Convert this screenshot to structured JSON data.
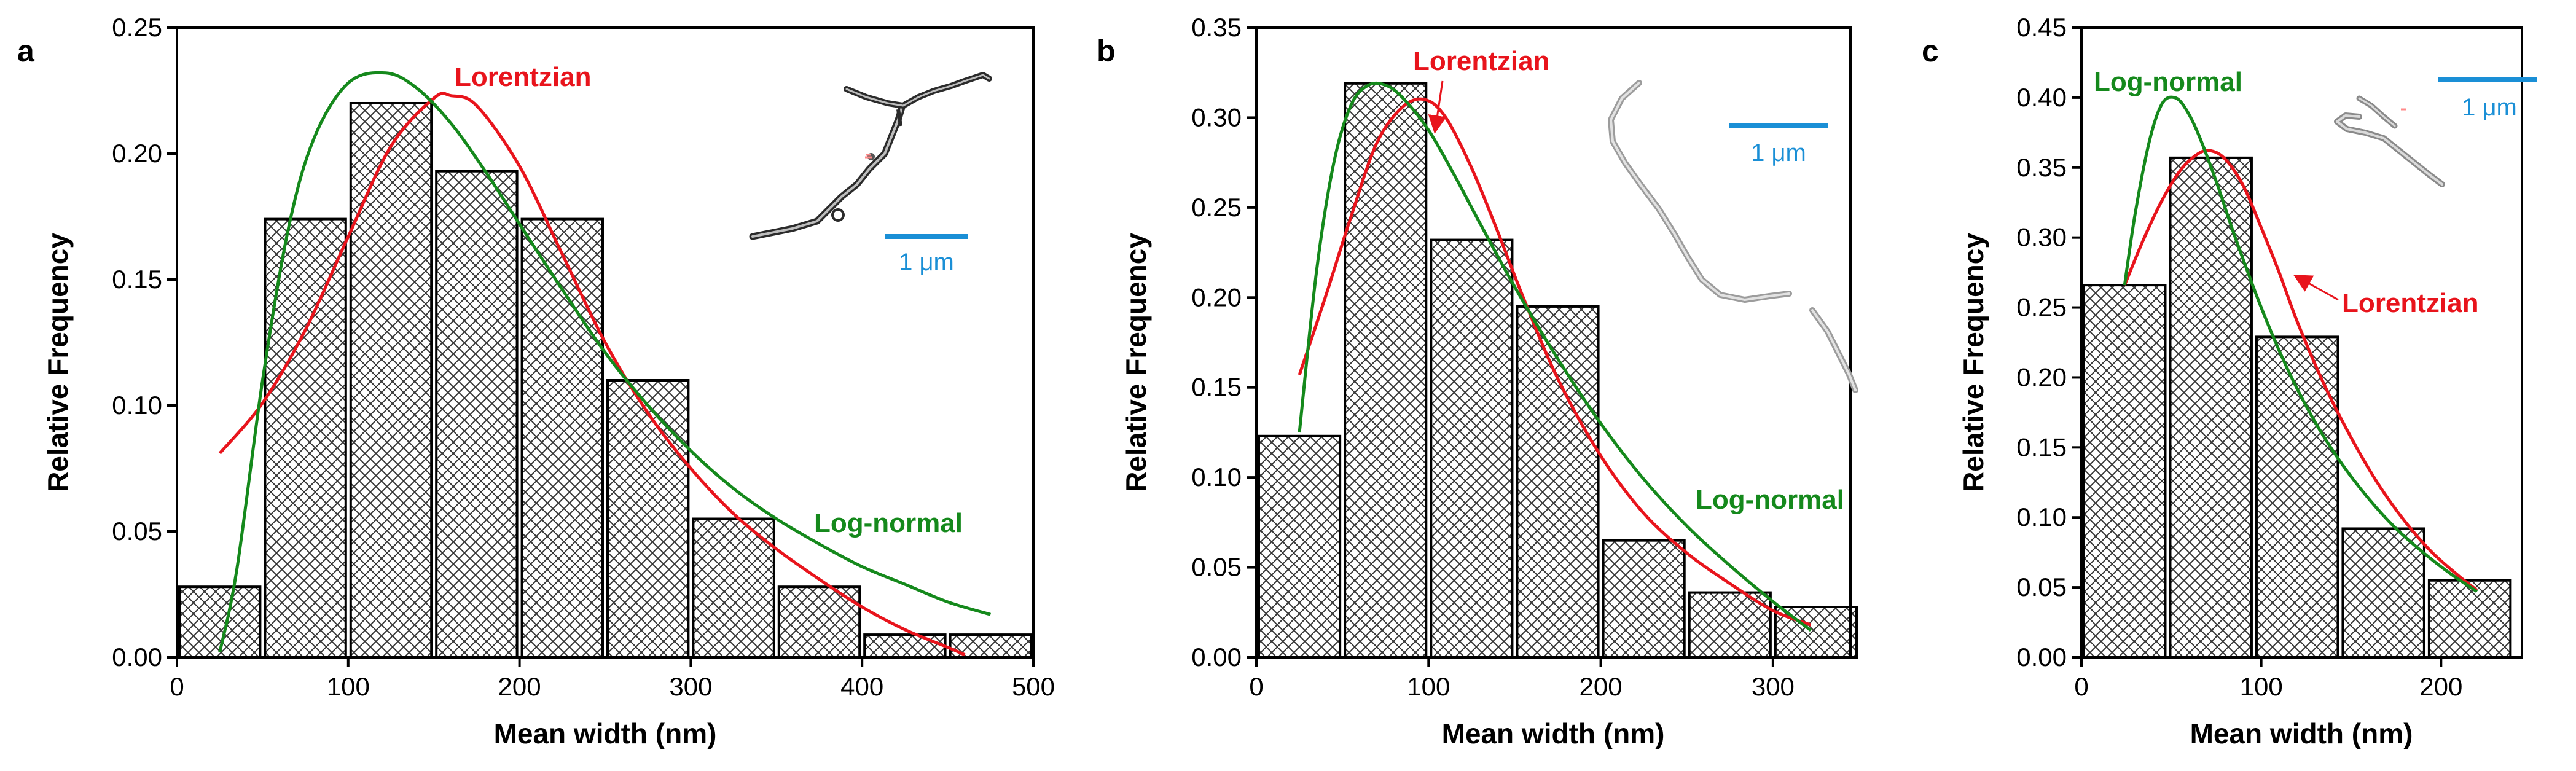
{
  "chart_data": [
    {
      "panel": "a",
      "type": "bar",
      "xlabel": "Mean width (nm)",
      "ylabel": "Relative Frequency",
      "xlim": [
        0,
        500
      ],
      "ylim": [
        0,
        0.25
      ],
      "xticks": [
        0,
        100,
        200,
        300,
        400,
        500
      ],
      "yticks": [
        0.0,
        0.05,
        0.1,
        0.15,
        0.2,
        0.25
      ],
      "ytick_decimals": 2,
      "bin_width": 50,
      "bar_centers": [
        25,
        75,
        125,
        175,
        225,
        275,
        325,
        375,
        425,
        475
      ],
      "values": [
        0.028,
        0.174,
        0.22,
        0.193,
        0.174,
        0.11,
        0.055,
        0.028,
        0.009,
        0.009
      ],
      "fits": [
        {
          "name": "Lorentzian",
          "color": "#e8141c",
          "x": [
            25,
            50,
            75,
            100,
            125,
            150,
            160,
            175,
            200,
            225,
            250,
            275,
            300,
            325,
            350,
            375,
            400,
            425,
            450,
            460
          ],
          "y": [
            0.081,
            0.101,
            0.13,
            0.167,
            0.203,
            0.222,
            0.223,
            0.219,
            0.195,
            0.16,
            0.125,
            0.097,
            0.075,
            0.057,
            0.043,
            0.031,
            0.02,
            0.011,
            0.004,
            0.001
          ]
        },
        {
          "name": "Log-normal",
          "color": "#15891c",
          "x": [
            25,
            35,
            50,
            65,
            80,
            100,
            122,
            140,
            160,
            180,
            200,
            225,
            250,
            275,
            300,
            325,
            350,
            375,
            400,
            425,
            450,
            475
          ],
          "y": [
            0.002,
            0.035,
            0.11,
            0.17,
            0.206,
            0.228,
            0.232,
            0.226,
            0.212,
            0.193,
            0.172,
            0.146,
            0.121,
            0.1,
            0.082,
            0.067,
            0.055,
            0.045,
            0.036,
            0.029,
            0.022,
            0.017
          ]
        }
      ],
      "annotations": [
        {
          "text": "a",
          "role": "panel-label"
        },
        {
          "text": "Lorentzian",
          "color": "#e8141c"
        },
        {
          "text": "Log-normal",
          "color": "#15891c"
        },
        {
          "text": "1 μm",
          "color": "#1a8fd6",
          "role": "scale-bar"
        }
      ]
    },
    {
      "panel": "b",
      "type": "bar",
      "xlabel": "Mean width (nm)",
      "ylabel": "Relative Frequency",
      "xlim": [
        0,
        345
      ],
      "ylim": [
        0,
        0.35
      ],
      "xticks": [
        0,
        100,
        200,
        300
      ],
      "yticks": [
        0.0,
        0.05,
        0.1,
        0.15,
        0.2,
        0.25,
        0.3,
        0.35
      ],
      "ytick_decimals": 2,
      "bin_width": 50,
      "bar_centers": [
        25,
        75,
        125,
        175,
        225,
        275,
        325
      ],
      "values": [
        0.123,
        0.319,
        0.232,
        0.195,
        0.065,
        0.036,
        0.028
      ],
      "fits": [
        {
          "name": "Lorentzian",
          "color": "#e8141c",
          "x": [
            25,
            40,
            55,
            70,
            85,
            98,
            110,
            125,
            140,
            155,
            175,
            200,
            225,
            250,
            275,
            300,
            322
          ],
          "y": [
            0.157,
            0.2,
            0.245,
            0.286,
            0.306,
            0.31,
            0.3,
            0.272,
            0.237,
            0.2,
            0.155,
            0.112,
            0.08,
            0.058,
            0.041,
            0.026,
            0.018
          ]
        },
        {
          "name": "Log-normal",
          "color": "#15891c",
          "x": [
            25,
            35,
            45,
            55,
            65,
            75,
            85,
            100,
            115,
            130,
            150,
            175,
            200,
            225,
            250,
            275,
            300,
            322
          ],
          "y": [
            0.125,
            0.215,
            0.275,
            0.307,
            0.318,
            0.318,
            0.311,
            0.293,
            0.268,
            0.241,
            0.206,
            0.166,
            0.13,
            0.099,
            0.073,
            0.051,
            0.031,
            0.015
          ]
        }
      ],
      "annotations": [
        {
          "text": "b",
          "role": "panel-label"
        },
        {
          "text": "Lorentzian",
          "color": "#e8141c"
        },
        {
          "text": "Log-normal",
          "color": "#15891c"
        },
        {
          "text": "1 μm",
          "color": "#1a8fd6",
          "role": "scale-bar"
        }
      ]
    },
    {
      "panel": "c",
      "type": "bar",
      "xlabel": "Mean width (nm)",
      "ylabel": "Relative Frequency",
      "xlim": [
        0,
        245
      ],
      "ylim": [
        0,
        0.45
      ],
      "xticks": [
        0,
        100,
        200
      ],
      "yticks": [
        0.0,
        0.05,
        0.1,
        0.15,
        0.2,
        0.25,
        0.3,
        0.35,
        0.4,
        0.45
      ],
      "ytick_decimals": 2,
      "bin_width": 48,
      "bar_centers": [
        24,
        72,
        120,
        168,
        216
      ],
      "values": [
        0.266,
        0.357,
        0.229,
        0.092,
        0.055
      ],
      "fits": [
        {
          "name": "Lorentzian",
          "color": "#e8141c",
          "x": [
            24,
            35,
            45,
            55,
            65,
            72,
            80,
            90,
            100,
            110,
            120,
            135,
            150,
            165,
            180,
            195,
            210,
            220
          ],
          "y": [
            0.266,
            0.3,
            0.327,
            0.348,
            0.36,
            0.362,
            0.356,
            0.337,
            0.307,
            0.275,
            0.24,
            0.195,
            0.157,
            0.124,
            0.097,
            0.075,
            0.058,
            0.048
          ]
        },
        {
          "name": "Log-normal",
          "color": "#15891c",
          "x": [
            24,
            30,
            38,
            45,
            52,
            58,
            65,
            75,
            85,
            100,
            115,
            130,
            145,
            160,
            175,
            190,
            205,
            220
          ],
          "y": [
            0.266,
            0.318,
            0.37,
            0.396,
            0.4,
            0.392,
            0.374,
            0.34,
            0.302,
            0.25,
            0.205,
            0.168,
            0.138,
            0.113,
            0.092,
            0.075,
            0.06,
            0.047
          ]
        }
      ],
      "annotations": [
        {
          "text": "c",
          "role": "panel-label"
        },
        {
          "text": "Log-normal",
          "color": "#15891c"
        },
        {
          "text": "Lorentzian",
          "color": "#e8141c"
        },
        {
          "text": "1 μm",
          "color": "#1a8fd6",
          "role": "scale-bar"
        }
      ]
    }
  ]
}
